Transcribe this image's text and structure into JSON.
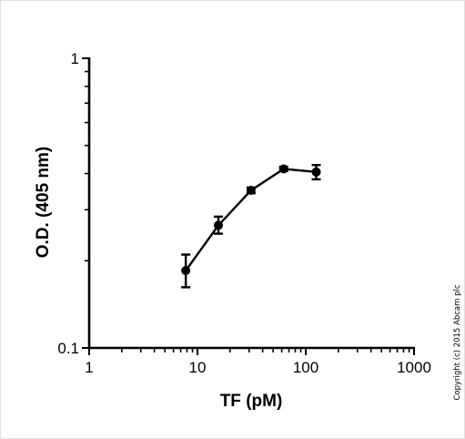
{
  "chart_data": {
    "type": "line",
    "xscale": "log",
    "yscale": "log",
    "xlim": [
      1,
      1000
    ],
    "ylim": [
      0.1,
      1
    ],
    "xlabel": "TF (pM)",
    "ylabel": "O.D. (405 nm)",
    "x_ticks": [
      "1",
      "10",
      "100",
      "1000"
    ],
    "y_ticks": [
      "0.1",
      "1"
    ],
    "grid": false,
    "series": [
      {
        "x": [
          7.8,
          15.6,
          31.25,
          62.5,
          125
        ],
        "y": [
          0.185,
          0.265,
          0.35,
          0.415,
          0.405
        ],
        "err_low": [
          0.162,
          0.248,
          0.342,
          0.408,
          0.382
        ],
        "err_high": [
          0.21,
          0.284,
          0.358,
          0.422,
          0.428
        ]
      }
    ]
  },
  "copyright": "Copyright (c) 2015 Abcam plc",
  "colors": {
    "ink": "#000000",
    "background": "#ffffff",
    "frame": "#e2e2e2"
  }
}
